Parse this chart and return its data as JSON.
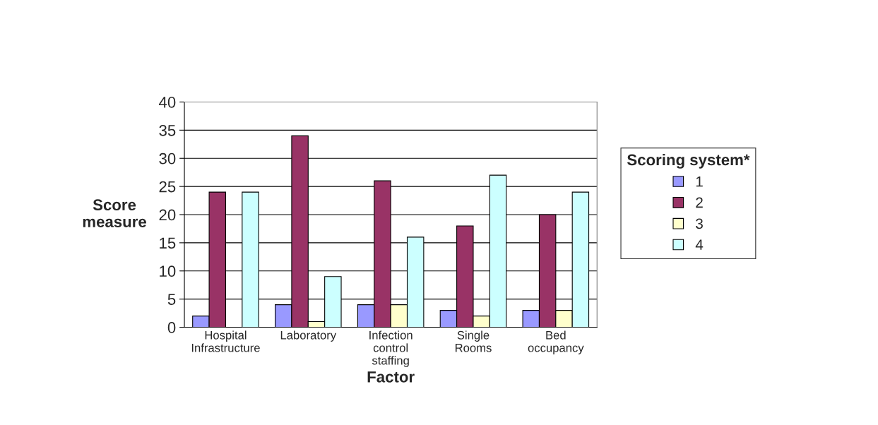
{
  "chart_data": {
    "type": "bar",
    "xlabel": "Factor",
    "ylabel": "Score\nmeasure",
    "legend_title": "Scoring system*",
    "categories": [
      "Hospital\nInfrastructure",
      "Laboratory",
      "Infection\ncontrol\nstaffing",
      "Single\nRooms",
      "Bed\noccupancy"
    ],
    "series": [
      {
        "name": "1",
        "color": "#9999ff",
        "values": [
          2,
          4,
          4,
          3,
          3
        ]
      },
      {
        "name": "2",
        "color": "#993366",
        "values": [
          24,
          34,
          26,
          18,
          20
        ]
      },
      {
        "name": "3",
        "color": "#ffffcc",
        "values": [
          null,
          1,
          4,
          2,
          3
        ]
      },
      {
        "name": "4",
        "color": "#ccffff",
        "values": [
          24,
          9,
          16,
          27,
          24
        ]
      }
    ],
    "ylim": [
      0,
      40
    ],
    "yticks": [
      0,
      5,
      10,
      15,
      20,
      25,
      30,
      35,
      40
    ],
    "grid": "y",
    "legend": "right"
  }
}
